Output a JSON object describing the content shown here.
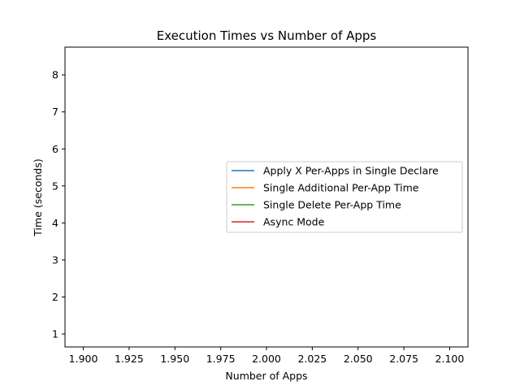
{
  "chart_data": {
    "type": "line",
    "title": "Execution Times vs Number of Apps",
    "xlabel": "Number of Apps",
    "ylabel": "Time (seconds)",
    "xlim": [
      1.89,
      2.11
    ],
    "ylim": [
      0.65,
      8.75
    ],
    "xticks": [
      1.9,
      1.925,
      1.95,
      1.975,
      2.0,
      2.025,
      2.05,
      2.075,
      2.1
    ],
    "xtick_labels": [
      "1.900",
      "1.925",
      "1.950",
      "1.975",
      "2.000",
      "2.025",
      "2.050",
      "2.075",
      "2.100"
    ],
    "yticks": [
      1,
      2,
      3,
      4,
      5,
      6,
      7,
      8
    ],
    "ytick_labels": [
      "1",
      "2",
      "3",
      "4",
      "5",
      "6",
      "7",
      "8"
    ],
    "grid": false,
    "legend_position": "center-right",
    "series": [
      {
        "name": "Apply X Per-Apps in Single Declare",
        "color": "#1f77b4",
        "x": [],
        "y": []
      },
      {
        "name": "Single Additional Per-App Time",
        "color": "#ff7f0e",
        "x": [],
        "y": []
      },
      {
        "name": "Single Delete Per-App Time",
        "color": "#2ca02c",
        "x": [],
        "y": []
      },
      {
        "name": "Async Mode",
        "color": "#d62728",
        "x": [],
        "y": []
      }
    ]
  }
}
